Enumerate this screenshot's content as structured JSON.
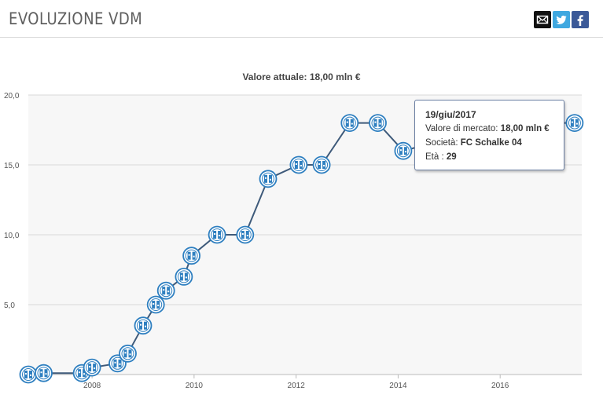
{
  "header": {
    "title": "EVOLUZIONE VDM",
    "share_icons": [
      "mail-icon",
      "twitter-icon",
      "facebook-icon"
    ]
  },
  "colors": {
    "line": "#3e5a7a",
    "marker": "#2e7fc0",
    "plot_bg": "#f7f7f7",
    "grid": "#d8d8d8"
  },
  "chart_data": {
    "type": "line",
    "title": "",
    "subtitle": "Valore attuale: 18,00 mln €",
    "xlabel": "",
    "ylabel": "",
    "ylim": [
      0,
      20
    ],
    "yticks": [
      "5,0",
      "10,0",
      "15,0",
      "20,0"
    ],
    "xticks": [
      "2008",
      "2010",
      "2012",
      "2014",
      "2016"
    ],
    "grid": true,
    "legend": "none",
    "series": [
      {
        "x": [
          2006.75,
          2007.05,
          2007.8,
          2008.0,
          2008.5,
          2008.7,
          2009.0,
          2009.25,
          2009.45,
          2009.8,
          2009.95,
          2010.45,
          2011.0,
          2011.45,
          2012.05,
          2012.5,
          2013.05,
          2013.6,
          2014.1,
          2016.1,
          2016.6,
          2017.0,
          2017.46
        ],
        "values": [
          0.0,
          0.1,
          0.1,
          0.5,
          0.8,
          1.5,
          3.5,
          5.0,
          6.0,
          7.0,
          8.5,
          10.0,
          10.0,
          14.0,
          15.0,
          15.0,
          18.0,
          18.0,
          16.0,
          18.0,
          16.0,
          18.0,
          18.0
        ]
      }
    ]
  },
  "tooltip": {
    "date": "19/giu/2017",
    "market_value_label": "Valore di mercato:",
    "market_value": "18,00 mln €",
    "club_label": "Società:",
    "club": "FC Schalke 04",
    "age_label": "Età :",
    "age": "29"
  }
}
